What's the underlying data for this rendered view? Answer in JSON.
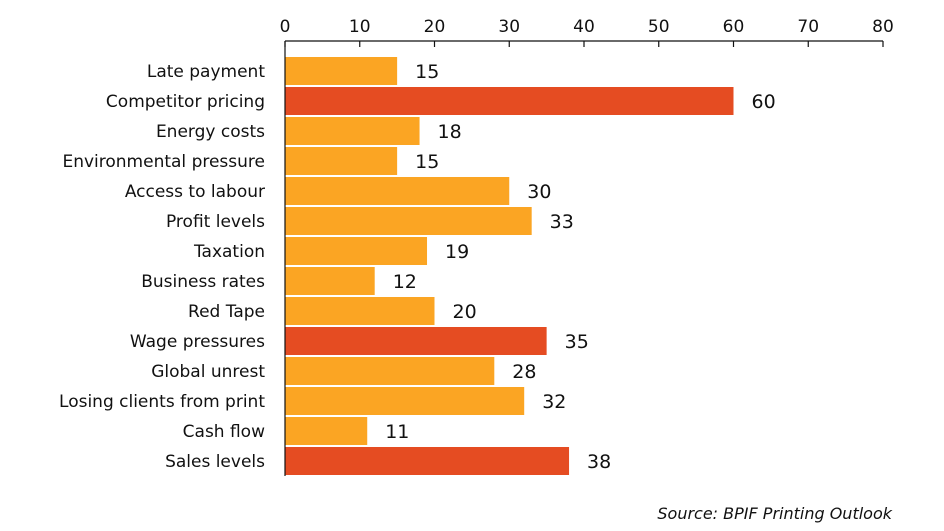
{
  "chart_data": {
    "type": "bar",
    "orientation": "horizontal",
    "categories": [
      "Late payment",
      "Competitor pricing",
      "Energy costs",
      "Environmental pressure",
      "Access to labour",
      "Profit levels",
      "Taxation",
      "Business rates",
      "Red Tape",
      "Wage pressures",
      "Global unrest",
      "Losing clients from print",
      "Cash flow",
      "Sales levels"
    ],
    "values": [
      15,
      60,
      18,
      15,
      30,
      33,
      19,
      12,
      20,
      35,
      28,
      32,
      11,
      38
    ],
    "highlighted": [
      false,
      true,
      false,
      false,
      false,
      false,
      false,
      false,
      false,
      true,
      false,
      false,
      false,
      true
    ],
    "xlim": [
      0,
      80
    ],
    "xticks": [
      0,
      10,
      20,
      30,
      40,
      50,
      60,
      70,
      80
    ],
    "xaxis_position": "top",
    "grid": false,
    "colors": {
      "bar": "#FBA523",
      "highlight": "#E54C22",
      "axis": "#111111"
    }
  },
  "source_text": "Source: BPIF Printing Outlook"
}
